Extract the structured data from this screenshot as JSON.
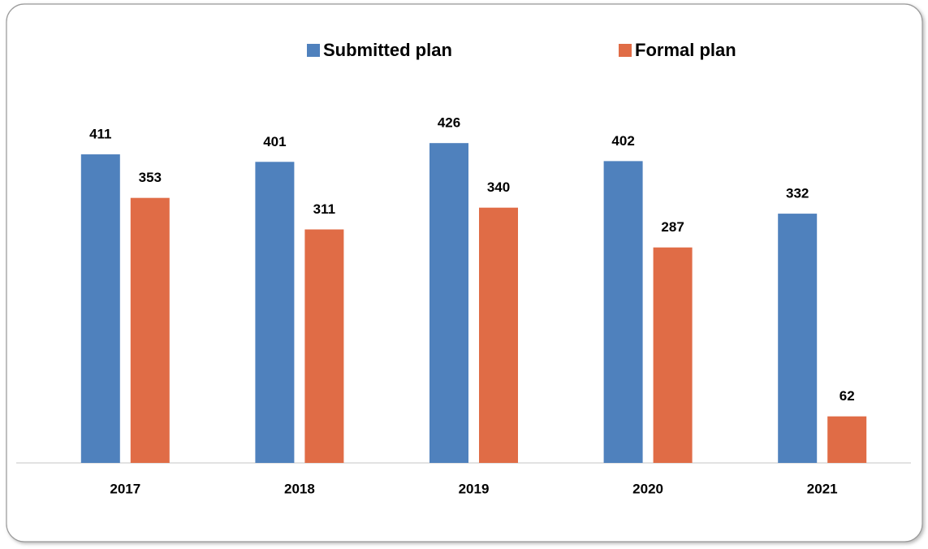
{
  "chart_data": {
    "type": "bar",
    "categories": [
      "2017",
      "2018",
      "2019",
      "2020",
      "2021"
    ],
    "series": [
      {
        "name": "Submitted plan",
        "color": "#4f81bd",
        "values": [
          411,
          401,
          426,
          402,
          332
        ]
      },
      {
        "name": "Formal plan",
        "color": "#e06c46",
        "values": [
          353,
          311,
          340,
          287,
          62
        ]
      }
    ],
    "ylim": [
      0,
      450
    ],
    "legend": "top"
  }
}
